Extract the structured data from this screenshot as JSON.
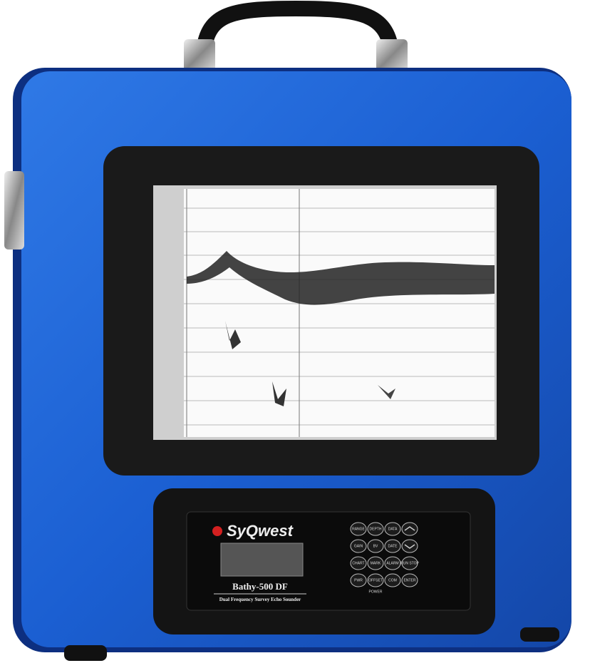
{
  "brand": "SyQwest",
  "model": "Bathy-500 DF",
  "description": "Dual Frequency Survey Echo Sounder",
  "keypad": {
    "keys": [
      "RANGE",
      "DEPTH",
      "DATA",
      "GAIN",
      "BV",
      "DATE",
      "CHART",
      "MARK",
      "ALARM",
      "RUN STOP",
      "PWR",
      "OFFSET",
      "COM",
      "ENTER"
    ],
    "label": "POWER"
  }
}
